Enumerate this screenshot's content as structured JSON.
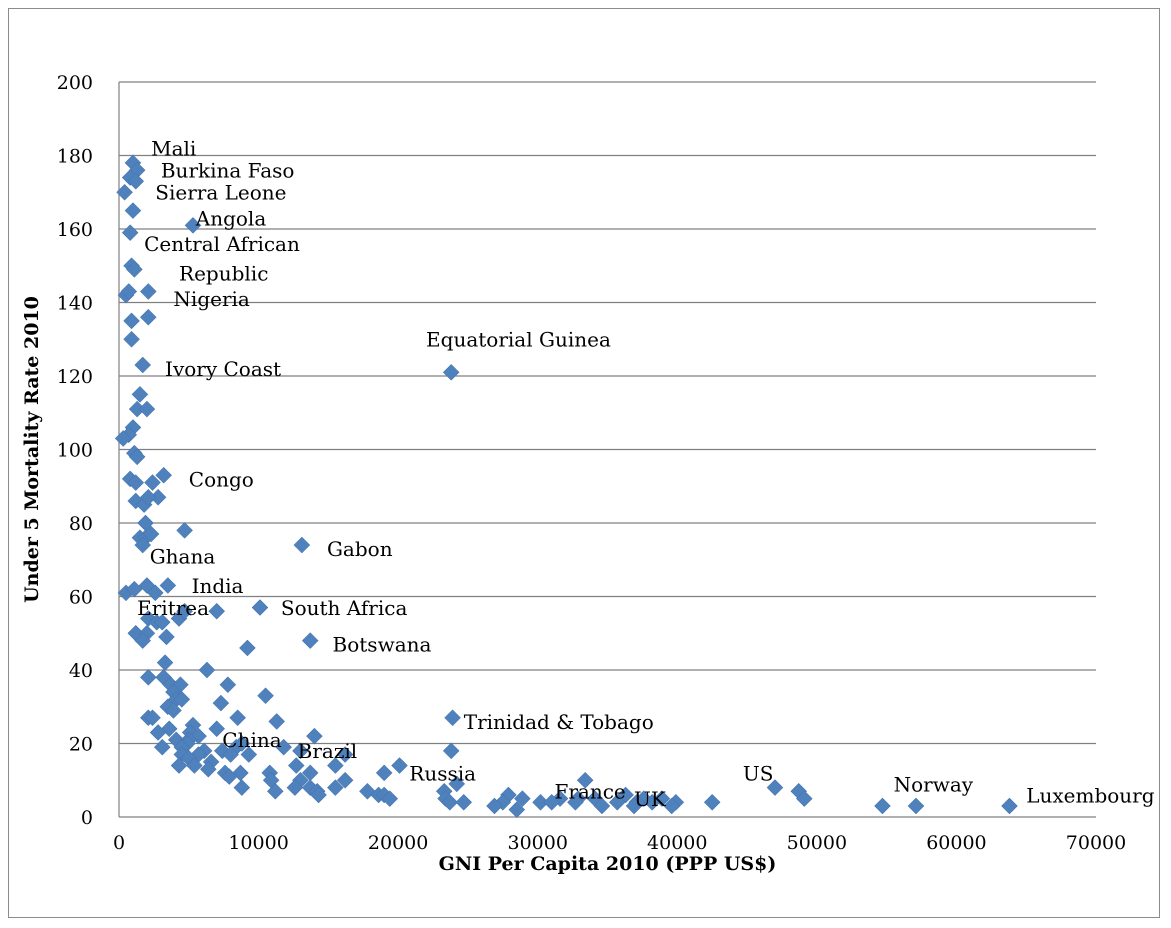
{
  "chart_data": {
    "type": "scatter",
    "title": "",
    "xlabel": "GNI Per Capita 2010 (PPP US$)",
    "ylabel": "Under 5 Mortality Rate 2010",
    "xlim": [
      0,
      70000
    ],
    "ylim": [
      0,
      200
    ],
    "xticks": [
      0,
      10000,
      20000,
      30000,
      40000,
      50000,
      60000,
      70000
    ],
    "yticks": [
      0,
      20,
      40,
      60,
      80,
      100,
      120,
      140,
      160,
      180,
      200
    ],
    "grid": "horizontal",
    "legend": "none",
    "marker": "diamond",
    "color": "#4f81bd",
    "points": [
      {
        "x": 1000,
        "y": 178
      },
      {
        "x": 1300,
        "y": 176
      },
      {
        "x": 800,
        "y": 174
      },
      {
        "x": 1200,
        "y": 173
      },
      {
        "x": 400,
        "y": 170
      },
      {
        "x": 1000,
        "y": 165
      },
      {
        "x": 5300,
        "y": 161
      },
      {
        "x": 800,
        "y": 159
      },
      {
        "x": 900,
        "y": 150
      },
      {
        "x": 1100,
        "y": 149
      },
      {
        "x": 500,
        "y": 142
      },
      {
        "x": 700,
        "y": 143
      },
      {
        "x": 2100,
        "y": 143
      },
      {
        "x": 2100,
        "y": 136
      },
      {
        "x": 900,
        "y": 135
      },
      {
        "x": 900,
        "y": 130
      },
      {
        "x": 1700,
        "y": 123
      },
      {
        "x": 23800,
        "y": 121
      },
      {
        "x": 1500,
        "y": 115
      },
      {
        "x": 1300,
        "y": 111
      },
      {
        "x": 2000,
        "y": 111
      },
      {
        "x": 1000,
        "y": 106
      },
      {
        "x": 700,
        "y": 104
      },
      {
        "x": 300,
        "y": 103
      },
      {
        "x": 1100,
        "y": 99
      },
      {
        "x": 1300,
        "y": 98
      },
      {
        "x": 3200,
        "y": 93
      },
      {
        "x": 800,
        "y": 92
      },
      {
        "x": 1200,
        "y": 91
      },
      {
        "x": 2400,
        "y": 91
      },
      {
        "x": 2800,
        "y": 87
      },
      {
        "x": 1200,
        "y": 86
      },
      {
        "x": 1800,
        "y": 85
      },
      {
        "x": 2100,
        "y": 87
      },
      {
        "x": 4700,
        "y": 78
      },
      {
        "x": 1900,
        "y": 80
      },
      {
        "x": 1500,
        "y": 76
      },
      {
        "x": 1900,
        "y": 76
      },
      {
        "x": 2300,
        "y": 77
      },
      {
        "x": 1700,
        "y": 74
      },
      {
        "x": 13100,
        "y": 74
      },
      {
        "x": 2000,
        "y": 63
      },
      {
        "x": 3500,
        "y": 63
      },
      {
        "x": 500,
        "y": 61
      },
      {
        "x": 1100,
        "y": 62
      },
      {
        "x": 2600,
        "y": 61
      },
      {
        "x": 7000,
        "y": 56
      },
      {
        "x": 10100,
        "y": 57
      },
      {
        "x": 4300,
        "y": 54
      },
      {
        "x": 4700,
        "y": 56
      },
      {
        "x": 2100,
        "y": 54
      },
      {
        "x": 2700,
        "y": 53
      },
      {
        "x": 3100,
        "y": 53
      },
      {
        "x": 1200,
        "y": 50
      },
      {
        "x": 2000,
        "y": 50
      },
      {
        "x": 1700,
        "y": 48
      },
      {
        "x": 3400,
        "y": 49
      },
      {
        "x": 13700,
        "y": 48
      },
      {
        "x": 9200,
        "y": 46
      },
      {
        "x": 3300,
        "y": 42
      },
      {
        "x": 6300,
        "y": 40
      },
      {
        "x": 3200,
        "y": 38
      },
      {
        "x": 2100,
        "y": 38
      },
      {
        "x": 3700,
        "y": 36
      },
      {
        "x": 4400,
        "y": 36
      },
      {
        "x": 7800,
        "y": 36
      },
      {
        "x": 3900,
        "y": 34
      },
      {
        "x": 10500,
        "y": 33
      },
      {
        "x": 4100,
        "y": 32
      },
      {
        "x": 4500,
        "y": 32
      },
      {
        "x": 7300,
        "y": 31
      },
      {
        "x": 3500,
        "y": 30
      },
      {
        "x": 3900,
        "y": 29
      },
      {
        "x": 2100,
        "y": 27
      },
      {
        "x": 2400,
        "y": 27
      },
      {
        "x": 8500,
        "y": 27
      },
      {
        "x": 11300,
        "y": 26
      },
      {
        "x": 23900,
        "y": 27
      },
      {
        "x": 5300,
        "y": 25
      },
      {
        "x": 3600,
        "y": 24
      },
      {
        "x": 7000,
        "y": 24
      },
      {
        "x": 2800,
        "y": 23
      },
      {
        "x": 5100,
        "y": 23
      },
      {
        "x": 5700,
        "y": 22
      },
      {
        "x": 14000,
        "y": 22
      },
      {
        "x": 4100,
        "y": 21
      },
      {
        "x": 5000,
        "y": 21
      },
      {
        "x": 4900,
        "y": 20
      },
      {
        "x": 3100,
        "y": 19
      },
      {
        "x": 4500,
        "y": 19
      },
      {
        "x": 8400,
        "y": 19
      },
      {
        "x": 8800,
        "y": 20
      },
      {
        "x": 11800,
        "y": 19
      },
      {
        "x": 6100,
        "y": 18
      },
      {
        "x": 7400,
        "y": 18
      },
      {
        "x": 13000,
        "y": 18
      },
      {
        "x": 23800,
        "y": 18
      },
      {
        "x": 4500,
        "y": 17
      },
      {
        "x": 5700,
        "y": 17
      },
      {
        "x": 8000,
        "y": 17
      },
      {
        "x": 9300,
        "y": 17
      },
      {
        "x": 16200,
        "y": 17
      },
      {
        "x": 5000,
        "y": 16
      },
      {
        "x": 6600,
        "y": 15
      },
      {
        "x": 4300,
        "y": 14
      },
      {
        "x": 5400,
        "y": 14
      },
      {
        "x": 12700,
        "y": 14
      },
      {
        "x": 15500,
        "y": 14
      },
      {
        "x": 20100,
        "y": 14
      },
      {
        "x": 6400,
        "y": 13
      },
      {
        "x": 7600,
        "y": 12
      },
      {
        "x": 8700,
        "y": 12
      },
      {
        "x": 10800,
        "y": 12
      },
      {
        "x": 13700,
        "y": 12
      },
      {
        "x": 19000,
        "y": 12
      },
      {
        "x": 7900,
        "y": 11
      },
      {
        "x": 10900,
        "y": 10
      },
      {
        "x": 13000,
        "y": 10
      },
      {
        "x": 16200,
        "y": 10
      },
      {
        "x": 33400,
        "y": 10
      },
      {
        "x": 24200,
        "y": 9
      },
      {
        "x": 8800,
        "y": 8
      },
      {
        "x": 12600,
        "y": 8
      },
      {
        "x": 13700,
        "y": 8
      },
      {
        "x": 15500,
        "y": 8
      },
      {
        "x": 47000,
        "y": 8
      },
      {
        "x": 11200,
        "y": 7
      },
      {
        "x": 14200,
        "y": 7
      },
      {
        "x": 17800,
        "y": 7
      },
      {
        "x": 23300,
        "y": 7
      },
      {
        "x": 48700,
        "y": 7
      },
      {
        "x": 14300,
        "y": 6
      },
      {
        "x": 18600,
        "y": 6
      },
      {
        "x": 19000,
        "y": 6
      },
      {
        "x": 27900,
        "y": 6
      },
      {
        "x": 36300,
        "y": 6
      },
      {
        "x": 49100,
        "y": 5
      },
      {
        "x": 19400,
        "y": 5
      },
      {
        "x": 23400,
        "y": 5
      },
      {
        "x": 28900,
        "y": 5
      },
      {
        "x": 31600,
        "y": 5
      },
      {
        "x": 32900,
        "y": 5
      },
      {
        "x": 34100,
        "y": 5
      },
      {
        "x": 37600,
        "y": 5
      },
      {
        "x": 38900,
        "y": 5
      },
      {
        "x": 23700,
        "y": 4
      },
      {
        "x": 24700,
        "y": 4
      },
      {
        "x": 27500,
        "y": 4
      },
      {
        "x": 30200,
        "y": 4
      },
      {
        "x": 31000,
        "y": 4
      },
      {
        "x": 32700,
        "y": 4
      },
      {
        "x": 35700,
        "y": 4
      },
      {
        "x": 37100,
        "y": 4
      },
      {
        "x": 38200,
        "y": 4
      },
      {
        "x": 39900,
        "y": 4
      },
      {
        "x": 42500,
        "y": 4
      },
      {
        "x": 26900,
        "y": 3
      },
      {
        "x": 34600,
        "y": 3
      },
      {
        "x": 36900,
        "y": 3
      },
      {
        "x": 39600,
        "y": 3
      },
      {
        "x": 54700,
        "y": 3
      },
      {
        "x": 57100,
        "y": 3
      },
      {
        "x": 63800,
        "y": 3
      },
      {
        "x": 28500,
        "y": 2
      }
    ],
    "annotations": [
      {
        "text": "Mali",
        "x": 2300,
        "y": 180
      },
      {
        "text": "Burkina Faso",
        "x": 3000,
        "y": 174
      },
      {
        "text": "Sierra Leone",
        "x": 2600,
        "y": 168
      },
      {
        "text": "Angola",
        "x": 5500,
        "y": 161
      },
      {
        "text": "Central African",
        "x": 1800,
        "y": 154
      },
      {
        "text": "Republic",
        "x": 4300,
        "y": 146
      },
      {
        "text": "Nigeria",
        "x": 3900,
        "y": 139
      },
      {
        "text": "Ivory Coast",
        "x": 3300,
        "y": 120
      },
      {
        "text": "Equatorial Guinea",
        "x": 22000,
        "y": 128
      },
      {
        "text": "Congo",
        "x": 5000,
        "y": 90
      },
      {
        "text": "Gabon",
        "x": 14900,
        "y": 71
      },
      {
        "text": "Ghana",
        "x": 2200,
        "y": 69
      },
      {
        "text": "India",
        "x": 5200,
        "y": 61
      },
      {
        "text": "Eritrea",
        "x": 1300,
        "y": 55
      },
      {
        "text": "South Africa",
        "x": 11600,
        "y": 55
      },
      {
        "text": "Botswana",
        "x": 15300,
        "y": 45
      },
      {
        "text": "Trinidad & Tobago",
        "x": 24700,
        "y": 24
      },
      {
        "text": "China",
        "x": 7400,
        "y": 19
      },
      {
        "text": "Brazil",
        "x": 12800,
        "y": 16
      },
      {
        "text": "Russia",
        "x": 20800,
        "y": 10
      },
      {
        "text": "France",
        "x": 31200,
        "y": 5
      },
      {
        "text": "UK",
        "x": 36900,
        "y": 3
      },
      {
        "text": "US",
        "x": 44700,
        "y": 10
      },
      {
        "text": "Norway",
        "x": 55500,
        "y": 7
      },
      {
        "text": "Luxembourg",
        "x": 65000,
        "y": 4
      }
    ]
  }
}
